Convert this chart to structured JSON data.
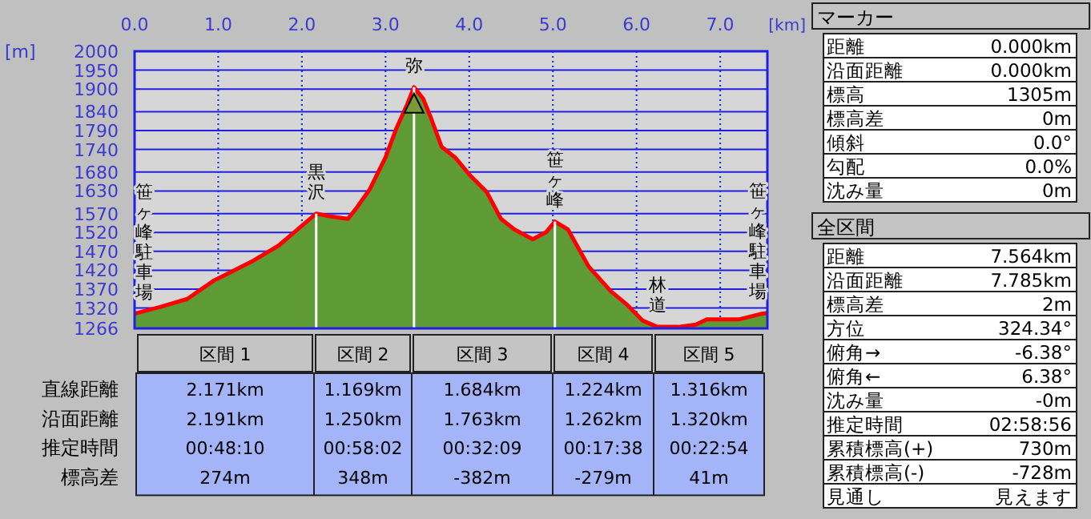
{
  "chart_data": [
    {
      "type": "area",
      "xlabel": "[km]",
      "ylabel": "[m]",
      "x": [
        0,
        0.31,
        0.63,
        0.95,
        1.14,
        1.4,
        1.72,
        1.91,
        2.171,
        2.33,
        2.55,
        2.65,
        2.81,
        3.0,
        3.13,
        3.26,
        3.34,
        3.45,
        3.54,
        3.67,
        3.83,
        4.02,
        4.21,
        4.38,
        4.54,
        4.76,
        4.92,
        5.024,
        5.18,
        5.43,
        5.69,
        5.88,
        6.07,
        6.248,
        6.5,
        6.71,
        6.84,
        7.23,
        7.48,
        7.564
      ],
      "series": [
        {
          "color": "#5e9b36",
          "values": [
            1305,
            1323,
            1344,
            1393,
            1414,
            1443,
            1485,
            1521,
            1570,
            1563,
            1556,
            1584,
            1634,
            1719,
            1796,
            1860,
            1905,
            1874,
            1825,
            1747,
            1719,
            1669,
            1627,
            1556,
            1528,
            1502,
            1521,
            1549,
            1528,
            1429,
            1365,
            1330,
            1287,
            1270,
            1270,
            1276,
            1290,
            1290,
            1304,
            1307
          ]
        }
      ],
      "xlim": [
        0,
        7.564
      ],
      "xticks": [
        {
          "value": 0,
          "label": "0.0"
        },
        {
          "value": 1,
          "label": "1.0"
        },
        {
          "value": 2,
          "label": "2.0"
        },
        {
          "value": 3,
          "label": "3.0"
        },
        {
          "value": 4,
          "label": "4.0"
        },
        {
          "value": 5,
          "label": "5.0"
        },
        {
          "value": 6,
          "label": "6.0"
        },
        {
          "value": 7,
          "label": "7.0"
        }
      ],
      "ylim": [
        1266,
        2000
      ],
      "yticks": [
        1266,
        1320,
        1370,
        1420,
        1470,
        1520,
        1570,
        1630,
        1680,
        1740,
        1790,
        1840,
        1900,
        1950,
        2000
      ],
      "grid": true,
      "ref_lines": [
        {
          "axis": "x",
          "value": 2.171,
          "color": "#ffffff"
        },
        {
          "axis": "x",
          "value": 3.34,
          "color": "#ffffff"
        },
        {
          "axis": "x",
          "value": 5.024,
          "color": "#ffffff"
        }
      ],
      "annotations": [
        {
          "text": "笹ヶ峰駐車場",
          "x": 0,
          "y": 1305
        },
        {
          "text": "黒沢",
          "x": 2.171,
          "y": 1570
        },
        {
          "text": "弥",
          "x": 3.34,
          "y": 1905
        },
        {
          "text": "笹ヶ峰",
          "x": 5.024,
          "y": 1549
        },
        {
          "text": "林道",
          "x": 6.248,
          "y": 1270
        },
        {
          "text": "笹ヶ峰駐車場",
          "x": 7.564,
          "y": 1307
        }
      ]
    },
    {
      "type": "other",
      "categories": [
        "区間 1",
        "区間 2",
        "区間 3",
        "区間 4",
        "区間 5"
      ],
      "y_categories": [
        "直線距離",
        "沿面距離",
        "推定時間",
        "標高差"
      ],
      "cell_labels": [
        [
          "2.171km",
          "1.169km",
          "1.684km",
          "1.224km",
          "1.316km"
        ],
        [
          "2.191km",
          "1.250km",
          "1.763km",
          "1.262km",
          "1.320km"
        ],
        [
          "00:48:10",
          "00:58:02",
          "00:32:09",
          "00:17:38",
          "00:22:54"
        ],
        [
          "274m",
          "348m",
          "-382m",
          "-279m",
          "41m"
        ]
      ]
    },
    {
      "type": "other",
      "title": "マーカー",
      "y_categories": [
        "距離",
        "沿面距離",
        "標高",
        "標高差",
        "傾斜",
        "勾配",
        "沈み量"
      ],
      "cell_labels": [
        [
          "0.000km"
        ],
        [
          "0.000km"
        ],
        [
          "1305m"
        ],
        [
          "0m"
        ],
        [
          "0.0°"
        ],
        [
          "0.0%"
        ],
        [
          "0m"
        ]
      ]
    },
    {
      "type": "other",
      "title": "全区間",
      "y_categories": [
        "距離",
        "沿面距離",
        "標高差",
        "方位",
        "俯角→",
        "俯角←",
        "沈み量",
        "推定時間",
        "累積標高(+)",
        "累積標高(-)",
        "見通し"
      ],
      "cell_labels": [
        [
          "7.564km"
        ],
        [
          "7.785km"
        ],
        [
          "2m"
        ],
        [
          "324.34°"
        ],
        [
          "-6.38°"
        ],
        [
          "6.38°"
        ],
        [
          "-0m"
        ],
        [
          "02:58:56"
        ],
        [
          "730m"
        ],
        [
          "-728m"
        ],
        [
          "見えます"
        ]
      ]
    }
  ]
}
